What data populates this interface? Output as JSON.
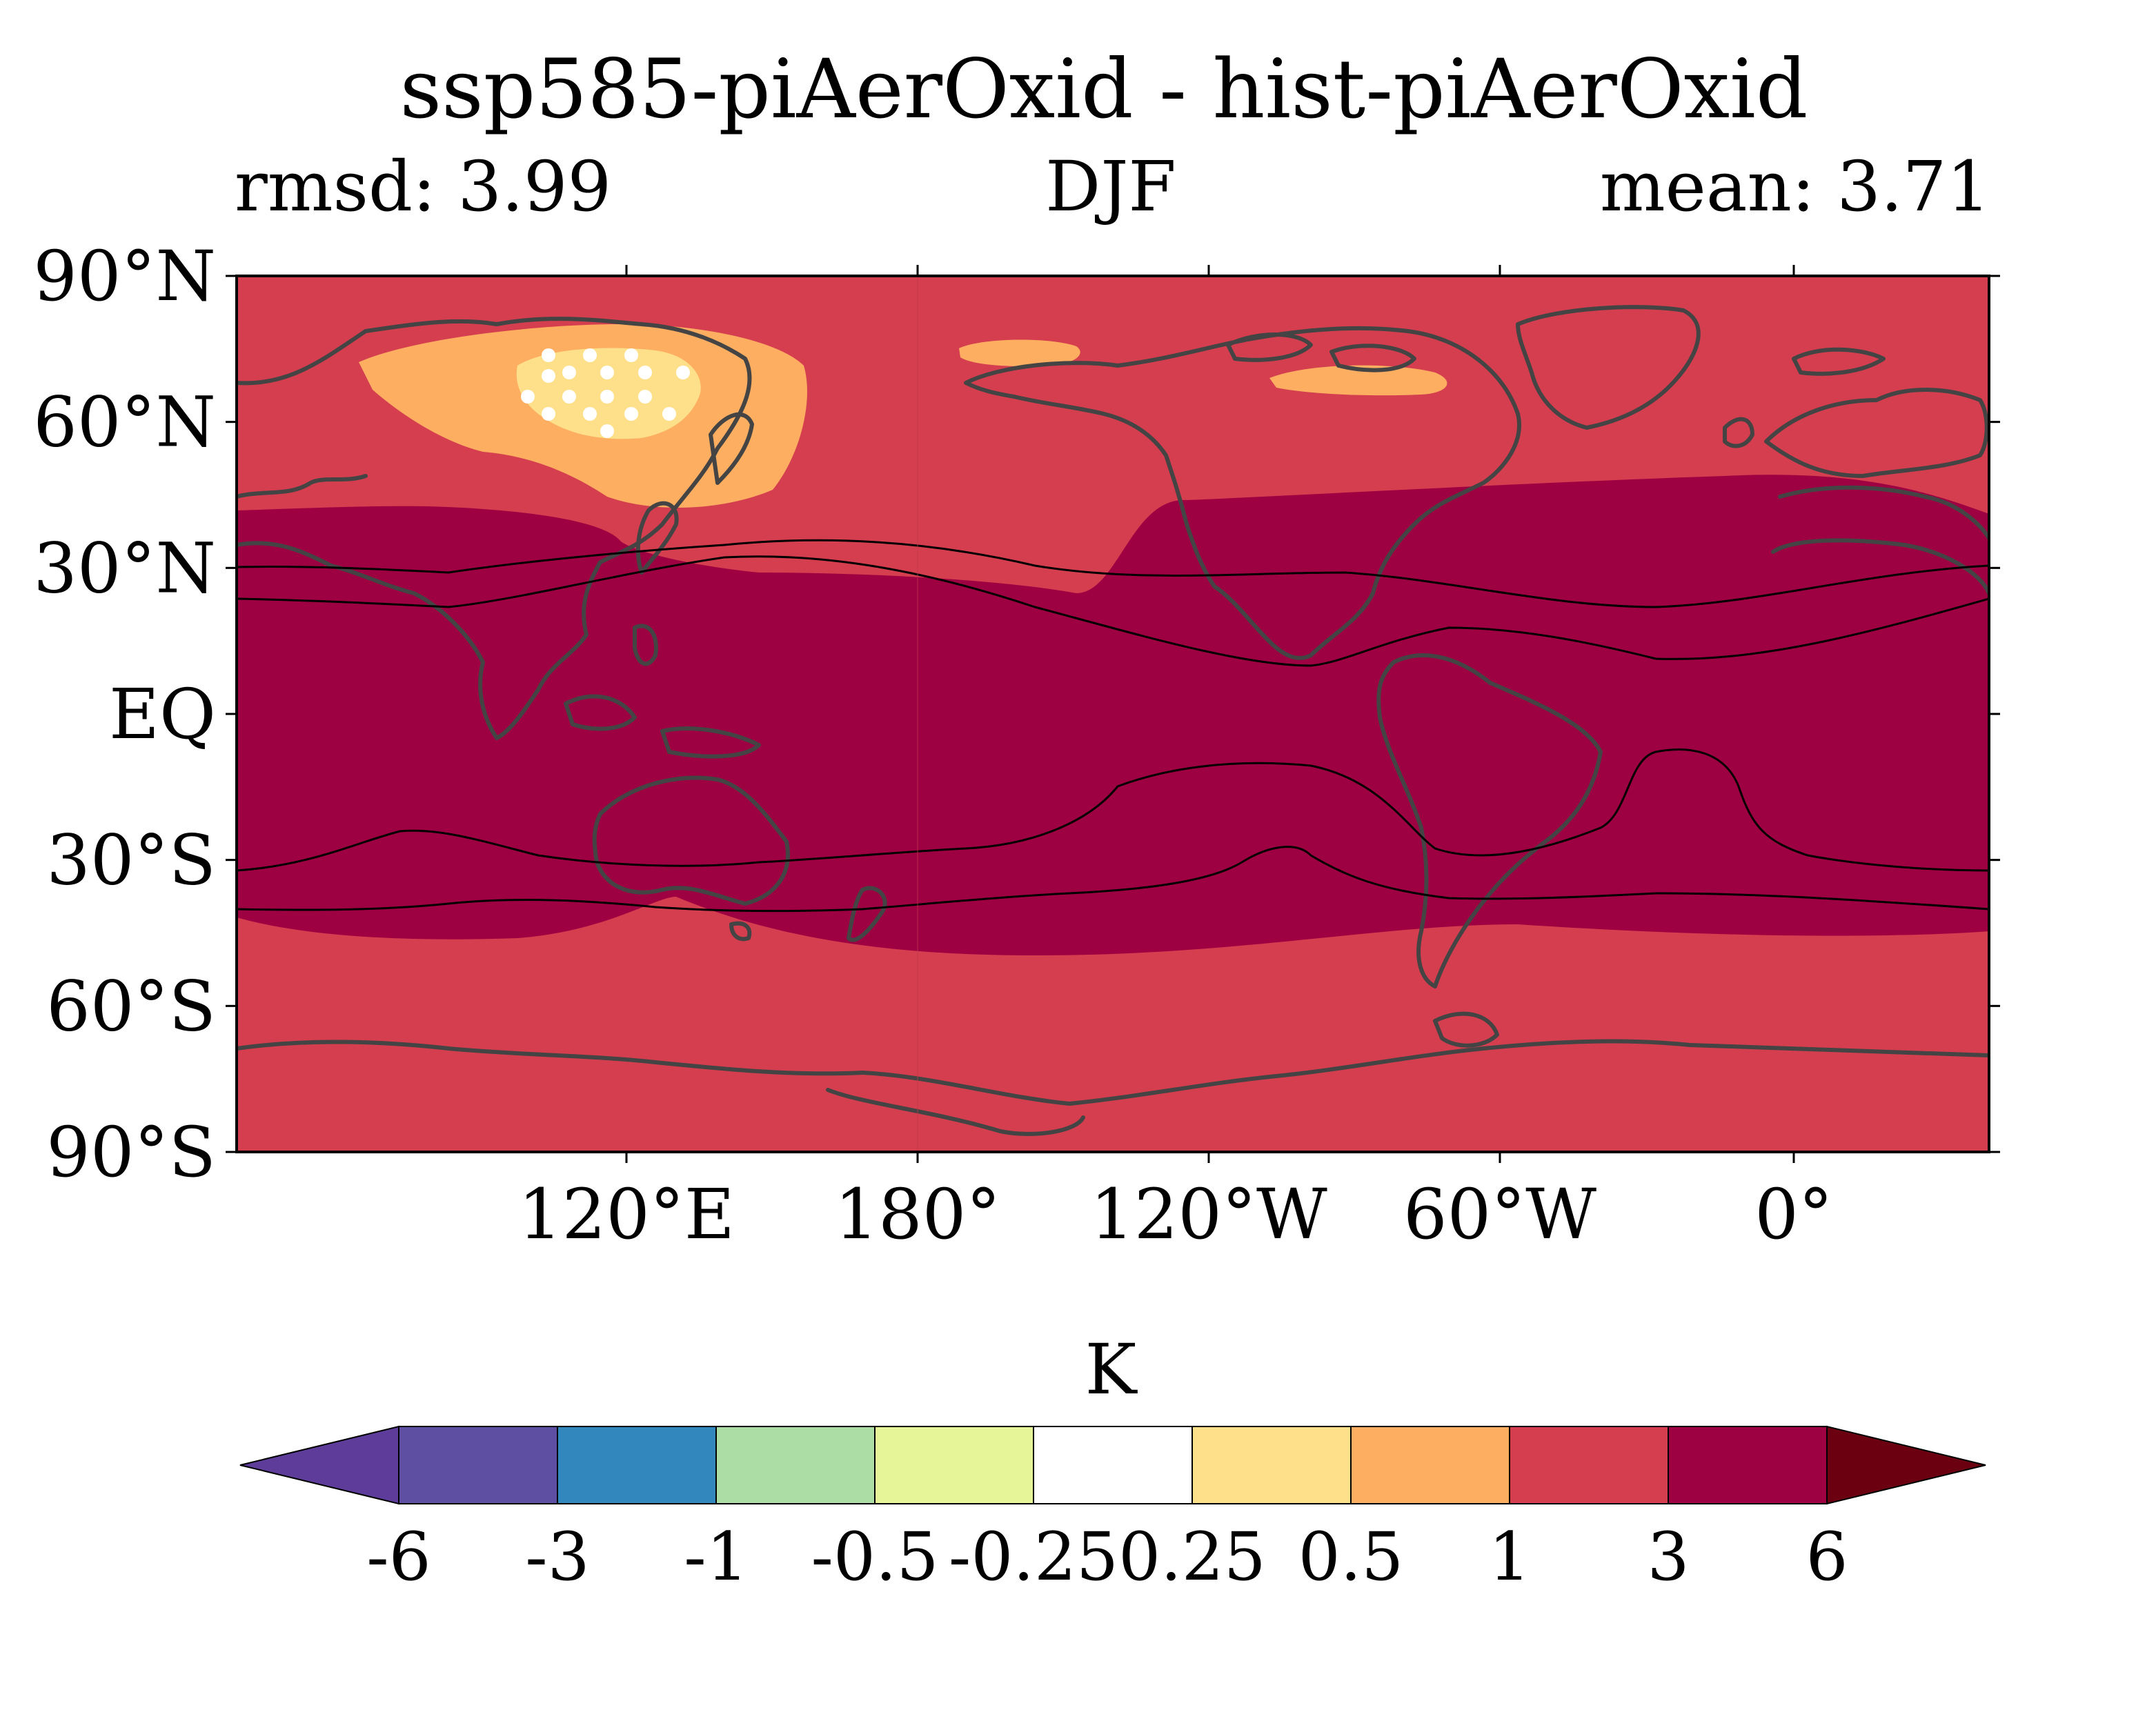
{
  "title": "ssp585-piAerOxid - hist-piAerOxid",
  "subtitle_left": "rmsd: 3.99",
  "subtitle_center": "DJF",
  "subtitle_right": "mean: 3.71",
  "lat_ticks": [
    "90°N",
    "60°N",
    "30°N",
    "EQ",
    "30°S",
    "60°S",
    "90°S"
  ],
  "lon_ticks": [
    "120°E",
    "180°",
    "120°W",
    "60°W",
    "0°"
  ],
  "colorbar": {
    "unit": "K",
    "levels": [
      "-6",
      "-3",
      "-1",
      "-0.5",
      "-0.25",
      "0.25",
      "0.5",
      "1",
      "3",
      "6"
    ],
    "colors": [
      "#5e3c99",
      "#5e4fa2",
      "#3288bd",
      "#abdda4",
      "#e6f598",
      "#ffffff",
      "#fee08b",
      "#fdae61",
      "#d53e4f",
      "#9e0142",
      "#6b0011"
    ]
  },
  "map_colors": {
    "background": "#d53e4f",
    "strong": "#9e0142",
    "moderate": "#fdae61",
    "weak": "#fee08b",
    "stipple": "#ffffff",
    "coastline": "#444444",
    "contour": "#000000"
  }
}
